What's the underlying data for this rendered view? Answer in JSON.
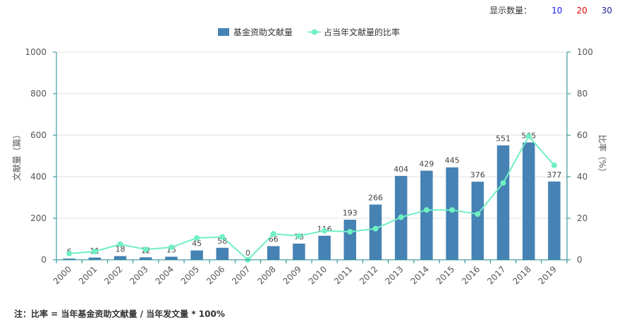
{
  "topbar": {
    "label": "显示数量：",
    "options": [
      {
        "label": "10",
        "color": "#1a1aff"
      },
      {
        "label": "20",
        "color": "#e60000"
      },
      {
        "label": "30",
        "color": "#1a1a99"
      }
    ]
  },
  "note": "注：比率 = 当年基金资助文献量 / 当年发文量 * 100%",
  "colors": {
    "bar": "#4682b4",
    "line": "#6ff0c2",
    "axis_right": "#18868c",
    "axis_left": "#18868c",
    "grid": "#e0e0e0"
  },
  "chart_data": {
    "type": "bar+line",
    "categories": [
      "2000",
      "2001",
      "2002",
      "2003",
      "2004",
      "2005",
      "2006",
      "2007",
      "2008",
      "2009",
      "2010",
      "2011",
      "2012",
      "2013",
      "2014",
      "2015",
      "2016",
      "2017",
      "2018",
      "2019"
    ],
    "series": [
      {
        "name": "基金资助文献量",
        "type": "bar",
        "axis": "left",
        "values": [
          6,
          11,
          18,
          12,
          15,
          45,
          58,
          0,
          66,
          78,
          116,
          193,
          266,
          404,
          429,
          445,
          376,
          551,
          565,
          377
        ]
      },
      {
        "name": "占当年文献量的比率",
        "type": "line",
        "axis": "right",
        "values": [
          3,
          4,
          7.5,
          5,
          6,
          10.5,
          11,
          0,
          12.5,
          11.5,
          14,
          13.5,
          15,
          20.5,
          24,
          24,
          22,
          37,
          59.5,
          45.5
        ]
      }
    ],
    "ylabel": "文献量（篇）",
    "y2label": "比率（%）",
    "ylim": [
      0,
      1000
    ],
    "y2lim": [
      0,
      100
    ],
    "yticks": [
      0,
      200,
      400,
      600,
      800,
      1000
    ],
    "y2ticks": [
      0,
      20,
      40,
      60,
      80,
      100
    ],
    "legend_position": "top-center",
    "grid": true
  }
}
